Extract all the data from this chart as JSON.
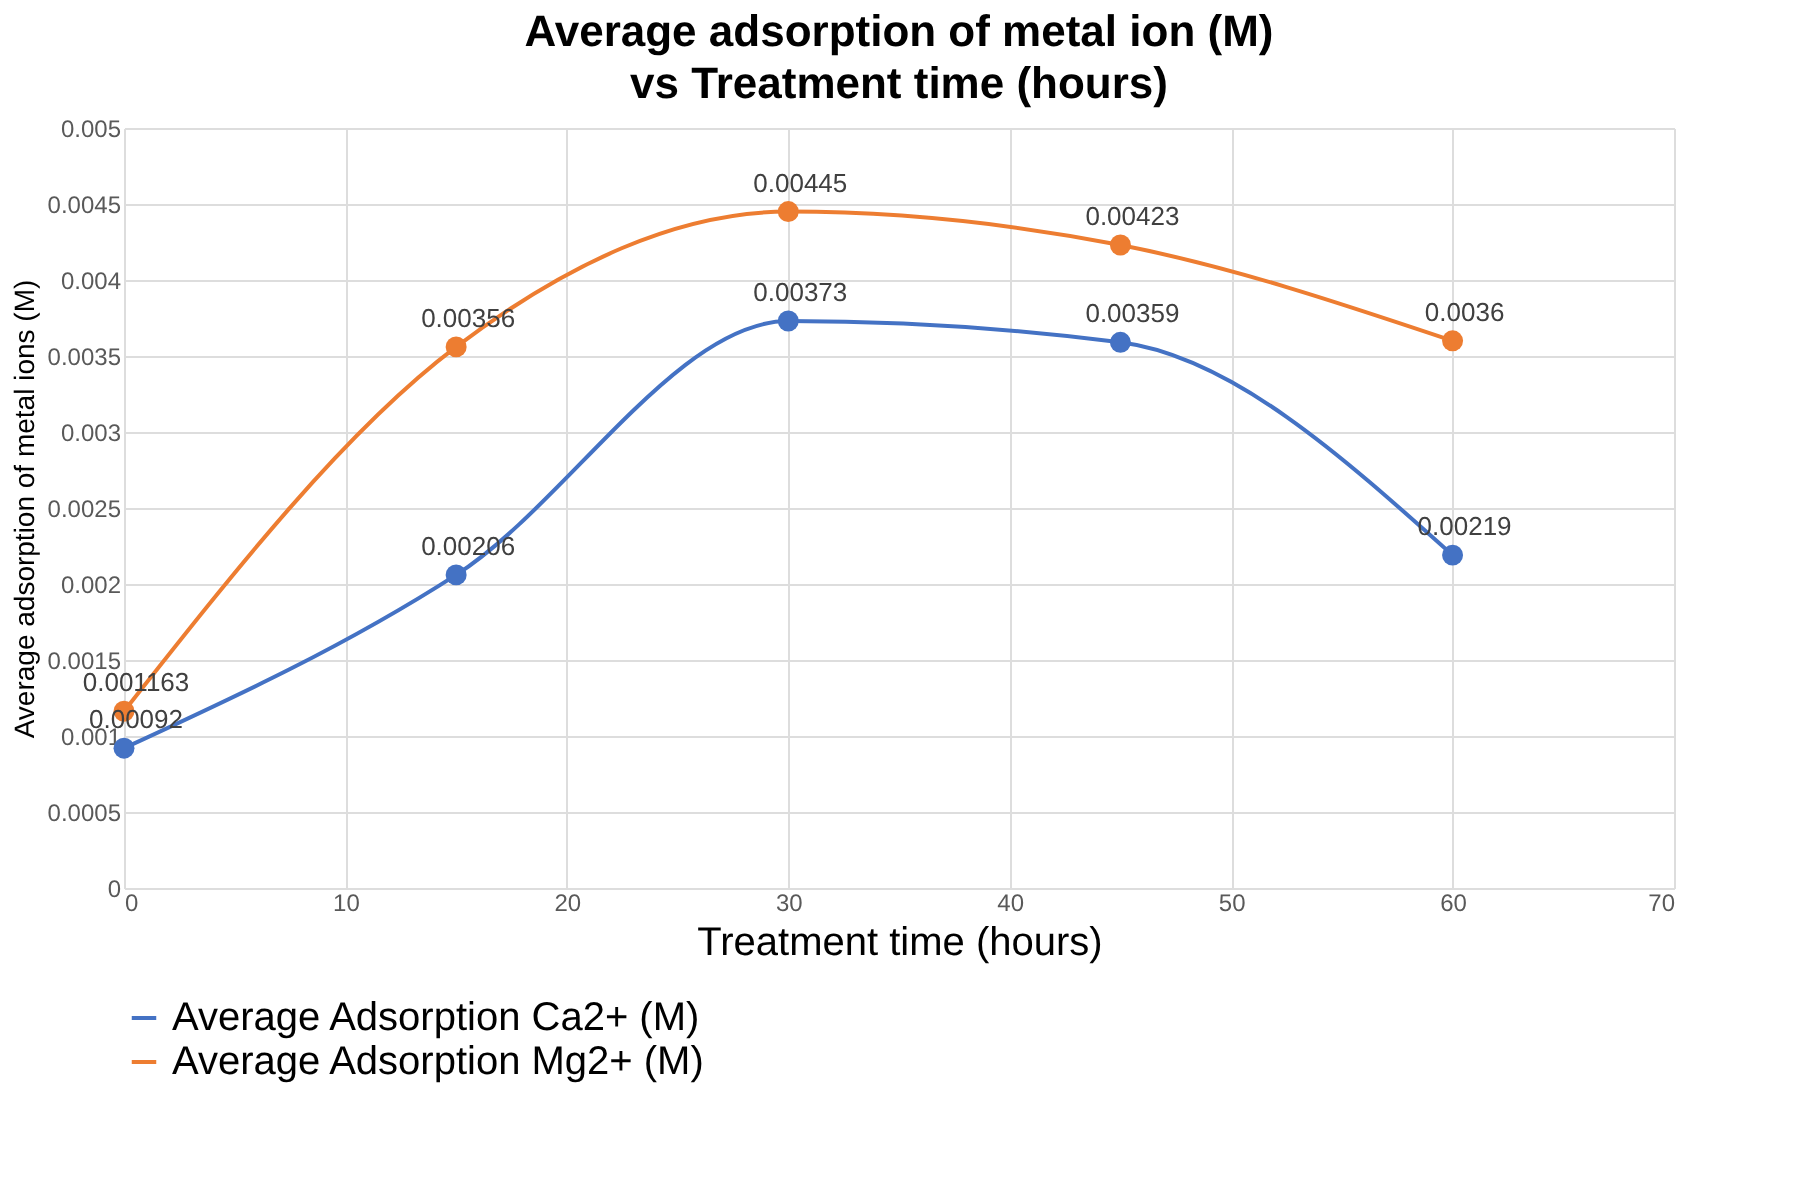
{
  "chart_data": {
    "type": "line",
    "title": "Average adsorption of metal ion (M) vs Treatment time (hours)",
    "xlabel": "Treatment time (hours)",
    "ylabel": "Average adsorption of metal ions (M)",
    "x": [
      0,
      15,
      30,
      45,
      60
    ],
    "series": [
      {
        "name": "Average Adsorption Ca2+ (M)",
        "color": "#4472c4",
        "values": [
          0.00092,
          0.00206,
          0.00373,
          0.00359,
          0.00219
        ]
      },
      {
        "name": "Average Adsorption Mg2+ (M)",
        "color": "#ed7d31",
        "values": [
          0.001163,
          0.00356,
          0.00445,
          0.00423,
          0.0036
        ]
      }
    ],
    "xlim": [
      0,
      70
    ],
    "xticks": [
      0,
      10,
      20,
      30,
      40,
      50,
      60,
      70
    ],
    "ylim": [
      0,
      0.005
    ],
    "yticks": [
      0,
      0.0005,
      0.001,
      0.0015,
      0.002,
      0.0025,
      0.003,
      0.0035,
      0.004,
      0.0045,
      0.005
    ],
    "data_labels": true,
    "grid": true,
    "legend": "bottom",
    "marker": "circle",
    "line_style": "solid"
  }
}
